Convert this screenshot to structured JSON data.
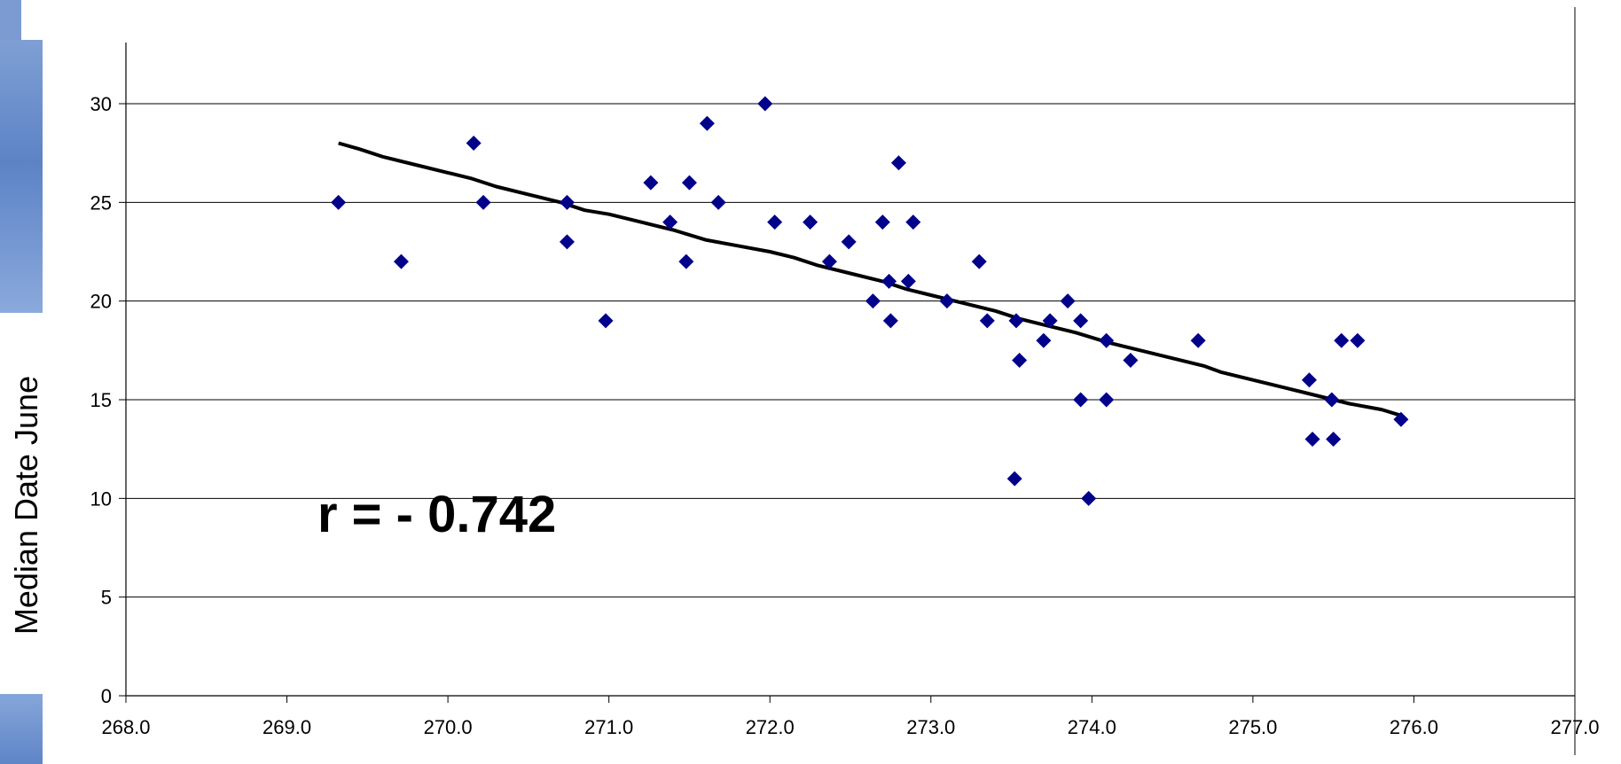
{
  "colors": {
    "marker": "#00008B",
    "trendline": "#000000",
    "gridline": "#000000",
    "sidebar": "#6a8ccb"
  },
  "chart_data": {
    "type": "scatter",
    "title": "",
    "xlabel": "",
    "ylabel": "Median Date June",
    "xlim": [
      268.0,
      277.0
    ],
    "ylim": [
      0,
      30
    ],
    "x_ticks": [
      "268.0",
      "269.0",
      "270.0",
      "271.0",
      "272.0",
      "273.0",
      "274.0",
      "275.0",
      "276.0",
      "277.0"
    ],
    "y_ticks": [
      "0",
      "5",
      "10",
      "15",
      "20",
      "25",
      "30"
    ],
    "grid": "horizontal",
    "marker": "diamond",
    "annotation": "r = - 0.742",
    "points": [
      [
        269.32,
        25
      ],
      [
        269.71,
        22
      ],
      [
        270.16,
        28
      ],
      [
        270.22,
        25
      ],
      [
        270.74,
        25
      ],
      [
        270.74,
        23
      ],
      [
        270.98,
        19
      ],
      [
        271.26,
        26
      ],
      [
        271.38,
        24
      ],
      [
        271.48,
        22
      ],
      [
        271.5,
        26
      ],
      [
        271.61,
        29
      ],
      [
        271.68,
        25
      ],
      [
        271.97,
        30
      ],
      [
        272.03,
        24
      ],
      [
        272.25,
        24
      ],
      [
        272.37,
        22
      ],
      [
        272.49,
        23
      ],
      [
        272.64,
        20
      ],
      [
        272.7,
        24
      ],
      [
        272.74,
        21
      ],
      [
        272.75,
        19
      ],
      [
        272.8,
        27
      ],
      [
        272.86,
        21
      ],
      [
        272.89,
        24
      ],
      [
        273.1,
        20
      ],
      [
        273.3,
        22
      ],
      [
        273.35,
        19
      ],
      [
        273.52,
        11
      ],
      [
        273.53,
        19
      ],
      [
        273.55,
        17
      ],
      [
        273.7,
        18
      ],
      [
        273.74,
        19
      ],
      [
        273.85,
        20
      ],
      [
        273.93,
        19
      ],
      [
        273.93,
        15
      ],
      [
        273.98,
        10
      ],
      [
        274.09,
        18
      ],
      [
        274.09,
        15
      ],
      [
        274.24,
        17
      ],
      [
        274.66,
        18
      ],
      [
        275.35,
        16
      ],
      [
        275.37,
        13
      ],
      [
        275.49,
        15
      ],
      [
        275.5,
        13
      ],
      [
        275.55,
        18
      ],
      [
        275.65,
        18
      ],
      [
        275.92,
        14
      ]
    ],
    "trendline": [
      [
        269.32,
        28.0
      ],
      [
        269.45,
        27.7
      ],
      [
        269.6,
        27.3
      ],
      [
        269.8,
        26.9
      ],
      [
        270.0,
        26.5
      ],
      [
        270.15,
        26.2
      ],
      [
        270.3,
        25.8
      ],
      [
        270.5,
        25.4
      ],
      [
        270.7,
        25.0
      ],
      [
        270.85,
        24.6
      ],
      [
        271.0,
        24.4
      ],
      [
        271.2,
        24.0
      ],
      [
        271.4,
        23.6
      ],
      [
        271.6,
        23.1
      ],
      [
        271.8,
        22.8
      ],
      [
        272.0,
        22.5
      ],
      [
        272.15,
        22.2
      ],
      [
        272.3,
        21.8
      ],
      [
        272.5,
        21.4
      ],
      [
        272.7,
        21.0
      ],
      [
        272.85,
        20.6
      ],
      [
        273.0,
        20.3
      ],
      [
        273.2,
        19.9
      ],
      [
        273.4,
        19.5
      ],
      [
        273.55,
        19.1
      ],
      [
        273.7,
        18.8
      ],
      [
        273.9,
        18.4
      ],
      [
        274.1,
        17.9
      ],
      [
        274.3,
        17.5
      ],
      [
        274.5,
        17.1
      ],
      [
        274.7,
        16.7
      ],
      [
        274.8,
        16.4
      ],
      [
        275.0,
        16.0
      ],
      [
        275.2,
        15.6
      ],
      [
        275.4,
        15.2
      ],
      [
        275.6,
        14.8
      ],
      [
        275.8,
        14.5
      ],
      [
        275.92,
        14.2
      ]
    ]
  }
}
